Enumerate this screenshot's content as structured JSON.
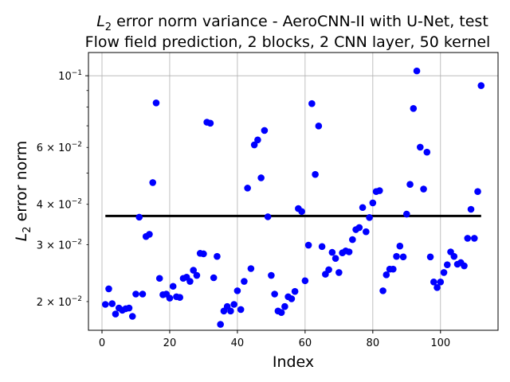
{
  "chart_data": {
    "type": "scatter",
    "title_line1": "error norm variance - AeroCNN-II with U-Net, test",
    "title_prefix": "L",
    "title_sub": "2",
    "title_line2": "Flow field prediction, 2 blocks, 2 CNN layer, 50 kernel",
    "xlabel": "Index",
    "ylabel_prefix": "L",
    "ylabel_sub": "2",
    "ylabel_suffix": " error norm",
    "x_ticks": [
      0,
      20,
      40,
      60,
      80,
      100
    ],
    "y_major_tick": {
      "base": "10",
      "exp": "−1",
      "value": 0.1
    },
    "y_ticks": [
      {
        "value": 0.02,
        "mantissa": "2",
        "base": "10",
        "exp": "−2"
      },
      {
        "value": 0.03,
        "mantissa": "3",
        "base": "10",
        "exp": "−2"
      },
      {
        "value": 0.04,
        "mantissa": "4",
        "base": "10",
        "exp": "−2"
      },
      {
        "value": 0.06,
        "mantissa": "6",
        "base": "10",
        "exp": "−2"
      }
    ],
    "y_scale": "log",
    "xlim": [
      -4,
      117
    ],
    "ylim": [
      0.0163,
      0.118
    ],
    "grid": "x-major",
    "marker_color": "#0000ff",
    "mean_line_color": "#000000",
    "mean_value": 0.0368,
    "mean_x_range": [
      1,
      112
    ],
    "x": [
      1,
      2,
      3,
      4,
      5,
      6,
      7,
      8,
      9,
      10,
      11,
      12,
      13,
      14,
      15,
      16,
      17,
      18,
      19,
      20,
      21,
      22,
      23,
      24,
      25,
      26,
      27,
      28,
      29,
      30,
      31,
      32,
      33,
      34,
      35,
      36,
      37,
      38,
      39,
      40,
      41,
      42,
      43,
      44,
      45,
      46,
      47,
      48,
      49,
      50,
      51,
      52,
      53,
      54,
      55,
      56,
      57,
      58,
      59,
      60,
      61,
      62,
      63,
      64,
      65,
      66,
      67,
      68,
      69,
      70,
      71,
      72,
      73,
      74,
      75,
      76,
      77,
      78,
      79,
      80,
      81,
      82,
      83,
      84,
      85,
      86,
      87,
      88,
      89,
      90,
      91,
      92,
      93,
      94,
      95,
      96,
      97,
      98,
      99,
      100,
      101,
      102,
      103,
      104,
      105,
      106,
      107,
      108,
      109,
      110,
      111,
      112
    ],
    "y": [
      0.0196,
      0.0219,
      0.0197,
      0.0183,
      0.0191,
      0.0188,
      0.019,
      0.0191,
      0.018,
      0.0211,
      0.0365,
      0.0211,
      0.0318,
      0.0323,
      0.0467,
      0.0824,
      0.0236,
      0.021,
      0.0211,
      0.0205,
      0.0223,
      0.0207,
      0.0206,
      0.0236,
      0.0238,
      0.0231,
      0.025,
      0.0241,
      0.0282,
      0.0281,
      0.0718,
      0.0713,
      0.0237,
      0.0276,
      0.017,
      0.0187,
      0.0193,
      0.0187,
      0.0196,
      0.0216,
      0.0189,
      0.0231,
      0.0449,
      0.0253,
      0.0611,
      0.0633,
      0.0483,
      0.0677,
      0.0366,
      0.0241,
      0.0211,
      0.0187,
      0.0185,
      0.0193,
      0.0207,
      0.0204,
      0.0215,
      0.0388,
      0.038,
      0.0232,
      0.0299,
      0.082,
      0.0495,
      0.0699,
      0.0296,
      0.0243,
      0.0251,
      0.0284,
      0.0272,
      0.0246,
      0.0283,
      0.0287,
      0.0285,
      0.0311,
      0.0334,
      0.0339,
      0.0391,
      0.0329,
      0.0364,
      0.0404,
      0.0438,
      0.0441,
      0.0216,
      0.0242,
      0.0252,
      0.0252,
      0.0276,
      0.0297,
      0.0275,
      0.0373,
      0.0461,
      0.0792,
      0.1035,
      0.0601,
      0.0446,
      0.058,
      0.0275,
      0.023,
      0.0221,
      0.023,
      0.0246,
      0.026,
      0.0285,
      0.0276,
      0.0261,
      0.0264,
      0.0258,
      0.0314,
      0.0386,
      0.0314,
      0.0438,
      0.0932
    ]
  }
}
